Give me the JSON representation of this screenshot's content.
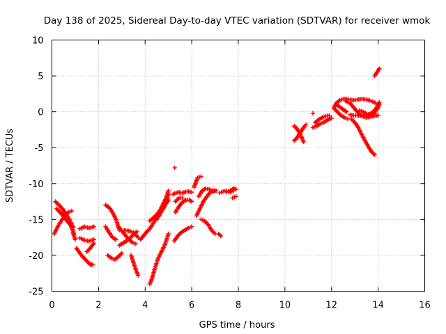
{
  "colors": {
    "background": "#ffffff",
    "series": "#ff0000",
    "axis": "#000000",
    "grid": "#a0a0a0"
  },
  "chart_data": {
    "type": "scatter",
    "title": "Day 138 of 2025, Sidereal Day-to-day VTEC variation (SDTVAR) for receiver wmok",
    "xlabel": "GPS time / hours",
    "ylabel": "SDTVAR / TECUs",
    "xlim": [
      0,
      16
    ],
    "ylim": [
      -25,
      10
    ],
    "xticks": [
      0,
      2,
      4,
      6,
      8,
      10,
      12,
      14,
      16
    ],
    "xtick_labels": [
      "0",
      "2",
      "4",
      "6",
      "8",
      "10",
      "12",
      "14",
      "16"
    ],
    "yticks": [
      -25,
      -20,
      -15,
      -10,
      -5,
      0,
      5,
      10
    ],
    "ytick_labels": [
      "-25",
      "-20",
      "-15",
      "-10",
      "-5",
      "0",
      "5",
      "10"
    ],
    "grid": true,
    "marker": "+",
    "series": [
      {
        "name": "SDTVAR",
        "segments": [
          {
            "x": [
              0.15,
              0.3,
              0.45,
              0.6,
              0.75,
              0.9
            ],
            "y": [
              -12.5,
              -13.0,
              -13.5,
              -14.2,
              -15.0,
              -16.0
            ]
          },
          {
            "x": [
              0.1,
              0.25,
              0.4,
              0.55,
              0.7,
              0.85
            ],
            "y": [
              -17.0,
              -16.0,
              -15.2,
              -14.5,
              -14.0,
              -13.8
            ]
          },
          {
            "x": [
              0.2,
              0.35,
              0.5,
              0.65,
              0.8,
              0.95
            ],
            "y": [
              -13.5,
              -14.0,
              -14.4,
              -15.0,
              -15.8,
              -17.0
            ]
          },
          {
            "x": [
              0.3,
              0.5,
              0.7,
              0.9
            ],
            "y": [
              -13.8,
              -14.6,
              -15.4,
              -16.2
            ]
          },
          {
            "x": [
              0.9,
              1.0
            ],
            "y": [
              -16.8,
              -17.8
            ]
          },
          {
            "x": [
              1.2,
              1.4,
              1.6,
              1.8
            ],
            "y": [
              -16.3,
              -16.0,
              -16.2,
              -16.0
            ]
          },
          {
            "x": [
              1.2,
              1.4,
              1.6,
              1.8
            ],
            "y": [
              -17.6,
              -17.9,
              -18.0,
              -17.8
            ]
          },
          {
            "x": [
              1.05,
              1.2,
              1.35,
              1.5,
              1.65,
              1.75
            ],
            "y": [
              -19.0,
              -19.7,
              -20.3,
              -20.8,
              -21.3,
              -21.3
            ]
          },
          {
            "x": [
              1.5,
              1.65,
              1.8
            ],
            "y": [
              -19.5,
              -19.0,
              -18.3
            ]
          },
          {
            "x": [
              2.3,
              2.45,
              2.6,
              2.75,
              2.9
            ],
            "y": [
              -13.0,
              -13.3,
              -14.0,
              -15.0,
              -16.5
            ]
          },
          {
            "x": [
              2.3,
              2.45,
              2.6,
              2.75
            ],
            "y": [
              -16.0,
              -16.8,
              -17.5,
              -17.8
            ]
          },
          {
            "x": [
              2.4,
              2.55,
              2.7,
              2.85,
              3.0
            ],
            "y": [
              -20.0,
              -20.4,
              -20.6,
              -20.2,
              -19.7
            ]
          },
          {
            "x": [
              2.85,
              3.0,
              3.15,
              3.3,
              3.45,
              3.6
            ],
            "y": [
              -16.0,
              -16.6,
              -17.2,
              -17.8,
              -18.2,
              -18.4
            ]
          },
          {
            "x": [
              2.9,
              3.05,
              3.2,
              3.35,
              3.5,
              3.65
            ],
            "y": [
              -18.6,
              -18.3,
              -18.0,
              -17.6,
              -17.1,
              -16.7
            ]
          },
          {
            "x": [
              3.1,
              3.3,
              3.5,
              3.7
            ],
            "y": [
              -16.5,
              -16.6,
              -16.8,
              -17.5
            ]
          },
          {
            "x": [
              3.4,
              3.5,
              3.6,
              3.7
            ],
            "y": [
              -20.0,
              -21.0,
              -22.0,
              -22.8
            ]
          },
          {
            "x": [
              3.8,
              3.95,
              4.1
            ],
            "y": [
              -17.8,
              -17.2,
              -16.6
            ]
          },
          {
            "x": [
              4.15,
              4.3,
              4.45,
              4.6,
              4.75,
              4.9,
              5.0
            ],
            "y": [
              -16.5,
              -15.8,
              -15.0,
              -14.0,
              -13.0,
              -12.0,
              -11.0
            ]
          },
          {
            "x": [
              4.2,
              4.35,
              4.5,
              4.65,
              4.8
            ],
            "y": [
              -15.2,
              -14.8,
              -14.3,
              -13.8,
              -13.2
            ]
          },
          {
            "x": [
              4.2,
              4.3,
              4.4,
              4.55,
              4.7,
              4.85,
              5.0
            ],
            "y": [
              -24.0,
              -23.2,
              -22.0,
              -20.5,
              -19.5,
              -18.5,
              -17.0
            ]
          },
          {
            "x": [
              4.5,
              4.65,
              4.8,
              4.95,
              5.0
            ],
            "y": [
              -15.0,
              -14.2,
              -13.4,
              -12.2,
              -11.5
            ]
          },
          {
            "x": [
              4.75,
              4.9,
              5.0
            ],
            "y": [
              -13.5,
              -12.8,
              -12.3
            ]
          },
          {
            "x": [
              5.2,
              5.4,
              5.6,
              5.8,
              6.0
            ],
            "y": [
              -11.5,
              -11.2,
              -11.3,
              -11.1,
              -11.2
            ]
          },
          {
            "x": [
              5.25,
              5.4,
              5.55,
              5.7,
              5.85,
              6.0
            ],
            "y": [
              -18.0,
              -17.3,
              -16.8,
              -16.5,
              -16.2,
              -16.0
            ]
          },
          {
            "x": [
              5.3,
              5.45,
              5.6,
              5.75,
              5.9,
              6.0
            ],
            "y": [
              -14.0,
              -13.2,
              -12.6,
              -12.3,
              -12.3,
              -12.5
            ]
          },
          {
            "x": [
              5.3,
              5.45,
              5.6
            ],
            "y": [
              -12.5,
              -12.0,
              -12.0
            ]
          },
          {
            "x": [
              5.27
            ],
            "y": [
              -7.8
            ]
          },
          {
            "x": [
              6.1,
              6.25,
              6.4
            ],
            "y": [
              -10.5,
              -9.2,
              -9.0
            ]
          },
          {
            "x": [
              6.2,
              6.35,
              6.5,
              6.65,
              6.8,
              7.0
            ],
            "y": [
              -14.5,
              -13.5,
              -12.5,
              -11.8,
              -11.2,
              -11.0
            ]
          },
          {
            "x": [
              6.3,
              6.45,
              6.6,
              6.75,
              6.9,
              7.05
            ],
            "y": [
              -11.8,
              -11.0,
              -10.7,
              -10.8,
              -11.0,
              -11.0
            ]
          },
          {
            "x": [
              6.4,
              6.55,
              6.7,
              6.85,
              7.0
            ],
            "y": [
              -15.0,
              -15.2,
              -15.7,
              -16.5,
              -17.0
            ]
          },
          {
            "x": [
              7.15,
              7.25
            ],
            "y": [
              -17.0,
              -17.3
            ]
          },
          {
            "x": [
              7.2,
              7.35,
              7.5,
              7.65,
              7.8
            ],
            "y": [
              -11.3,
              -11.1,
              -11.0,
              -11.2,
              -11.0
            ]
          },
          {
            "x": [
              7.5,
              7.65,
              7.8,
              7.9
            ],
            "y": [
              -11.2,
              -11.0,
              -10.7,
              -10.8
            ]
          },
          {
            "x": [
              7.75,
              7.9
            ],
            "y": [
              -12.0,
              -11.8
            ]
          },
          {
            "x": [
              10.4,
              10.5,
              10.6,
              10.7,
              10.8,
              10.9
            ],
            "y": [
              -4.0,
              -3.7,
              -3.2,
              -2.7,
              -2.2,
              -1.8
            ]
          },
          {
            "x": [
              10.4,
              10.5,
              10.6,
              10.7,
              10.8
            ],
            "y": [
              -2.0,
              -2.3,
              -2.8,
              -3.4,
              -4.2
            ]
          },
          {
            "x": [
              11.2
            ],
            "y": [
              -0.2
            ]
          },
          {
            "x": [
              11.2,
              11.35,
              11.5,
              11.65,
              11.8,
              11.9,
              12.0
            ],
            "y": [
              -2.2,
              -2.0,
              -1.7,
              -1.5,
              -1.2,
              -1.0,
              -0.9
            ]
          },
          {
            "x": [
              11.3,
              11.45,
              11.6,
              11.75,
              11.9
            ],
            "y": [
              -1.5,
              -1.1,
              -0.8,
              -0.6,
              -0.5
            ]
          },
          {
            "x": [
              12.1,
              12.2,
              12.35,
              12.5,
              12.65,
              12.8,
              12.95,
              13.1,
              13.3,
              13.5,
              13.7,
              13.9
            ],
            "y": [
              0.5,
              1.2,
              1.6,
              1.8,
              1.8,
              1.7,
              1.6,
              1.7,
              1.8,
              1.7,
              1.5,
              1.2
            ]
          },
          {
            "x": [
              12.1,
              12.25,
              12.4,
              12.55,
              12.7
            ],
            "y": [
              0.5,
              0.0,
              -0.5,
              -0.8,
              -1.0
            ]
          },
          {
            "x": [
              12.2,
              12.35,
              12.5,
              12.65
            ],
            "y": [
              1.0,
              0.7,
              0.3,
              0.0
            ]
          },
          {
            "x": [
              12.6,
              12.8,
              12.95,
              13.1,
              13.3,
              13.5,
              13.7,
              13.9
            ],
            "y": [
              1.5,
              1.2,
              0.6,
              0.0,
              -0.6,
              -0.8,
              -0.7,
              -0.5
            ]
          },
          {
            "x": [
              12.8,
              12.95,
              13.1,
              13.3,
              13.5,
              13.7,
              13.9,
              14.0
            ],
            "y": [
              -0.4,
              -0.5,
              -0.5,
              -0.6,
              -0.6,
              -0.5,
              -0.5,
              -0.5
            ]
          },
          {
            "x": [
              12.85,
              13.0,
              13.15,
              13.3,
              13.5,
              13.7,
              13.85
            ],
            "y": [
              -1.0,
              -1.5,
              -2.2,
              -3.2,
              -4.4,
              -5.5,
              -6.0
            ]
          },
          {
            "x": [
              13.2,
              13.35,
              13.5,
              13.65,
              13.8,
              13.95,
              14.05
            ],
            "y": [
              0.2,
              0.0,
              -0.3,
              -0.4,
              -0.2,
              0.3,
              1.0
            ]
          },
          {
            "x": [
              13.6,
              13.75,
              13.9,
              14.0,
              14.05
            ],
            "y": [
              -0.4,
              -0.1,
              0.4,
              1.0,
              1.3
            ]
          },
          {
            "x": [
              13.85,
              13.95,
              14.05
            ],
            "y": [
              5.0,
              5.5,
              6.0
            ]
          }
        ]
      }
    ]
  }
}
